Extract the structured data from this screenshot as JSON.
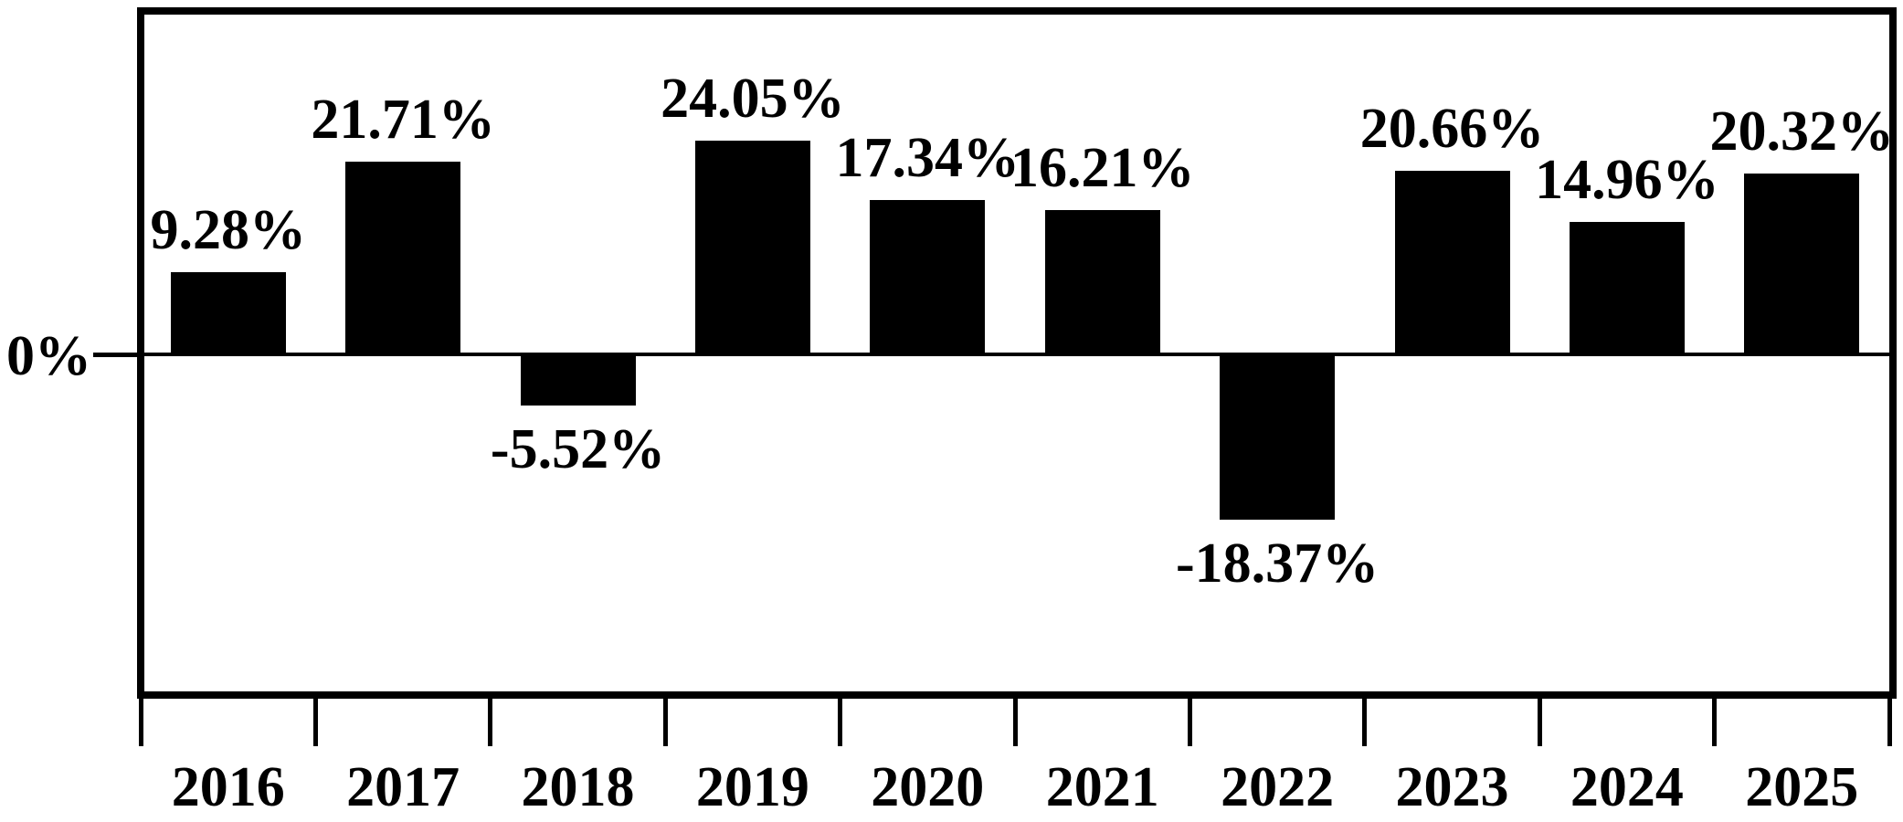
{
  "chart_data": {
    "type": "bar",
    "categories": [
      "2016",
      "2017",
      "2018",
      "2019",
      "2020",
      "2021",
      "2022",
      "2023",
      "2024",
      "2025"
    ],
    "values": [
      9.28,
      21.71,
      -5.52,
      24.05,
      17.34,
      16.21,
      -18.37,
      20.66,
      14.96,
      20.32
    ],
    "value_labels": [
      "9.28%",
      "21.71%",
      "-5.52%",
      "24.05%",
      "17.34%",
      "16.21%",
      "-18.37%",
      "20.66%",
      "14.96%",
      "20.32%"
    ],
    "zero_label": "0%",
    "ylim": [
      -38,
      38
    ],
    "grid": false,
    "legend": "none",
    "bar_color": "#000000",
    "axis_color": "#000000",
    "background_color": "#ffffff"
  }
}
